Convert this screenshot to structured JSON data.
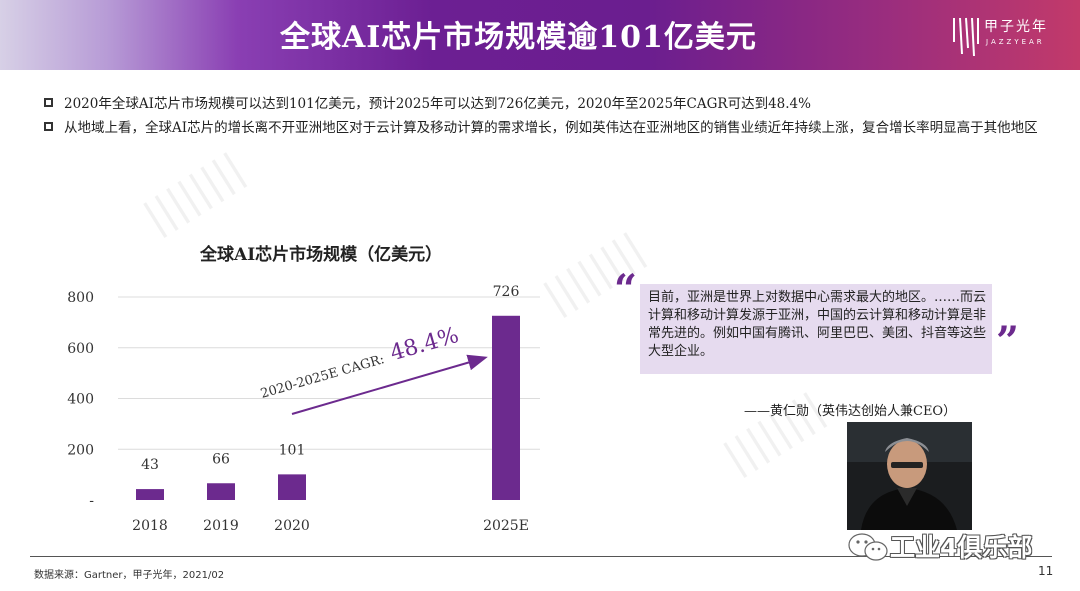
{
  "header": {
    "title": "全球AI芯片市场规模逾101亿美元",
    "logo_text": "甲子光年",
    "logo_sub": "JAZZYEAR"
  },
  "bullets": [
    "2020年全球AI芯片市场规模可以达到101亿美元，预计2025年可以达到726亿美元，2020年至2025年CAGR可达到48.4%",
    "从地域上看，全球AI芯片的增长离不开亚洲地区对于云计算及移动计算的需求增长，例如英伟达在亚洲地区的销售业绩近年持续上涨，复合增长率明显高于其他地区"
  ],
  "chart_data": {
    "type": "bar",
    "title": "全球AI芯片市场规模（亿美元）",
    "categories": [
      "2018",
      "2019",
      "2020",
      "2025E"
    ],
    "values": [
      43,
      66,
      101,
      726
    ],
    "y_ticks": [
      "800",
      "600",
      "400",
      "200",
      "-"
    ],
    "ylim": [
      0,
      800
    ],
    "grid": true,
    "bar_color": "#6c2a8e",
    "annotation": {
      "label": "2020-2025E CAGR:",
      "value": "48.4%"
    }
  },
  "quote": {
    "open_mark": "“",
    "close_mark": "”",
    "text": "目前，亚洲是世界上对数据中心需求最大的地区。……而云计算和移动计算发源于亚洲，中国的云计算和移动计算是非常先进的。例如中国有腾讯、阿里巴巴、美团、抖音等这些大型企业。",
    "author": "——黄仁勋（英伟达创始人兼CEO）"
  },
  "footer": {
    "source": "数据来源：Gartner，甲子光年，2021/02",
    "page": "11",
    "wechat": "工业4俱乐部"
  },
  "colors": {
    "accent": "#6c2a8e",
    "quote_bg": "#e6dbef"
  }
}
